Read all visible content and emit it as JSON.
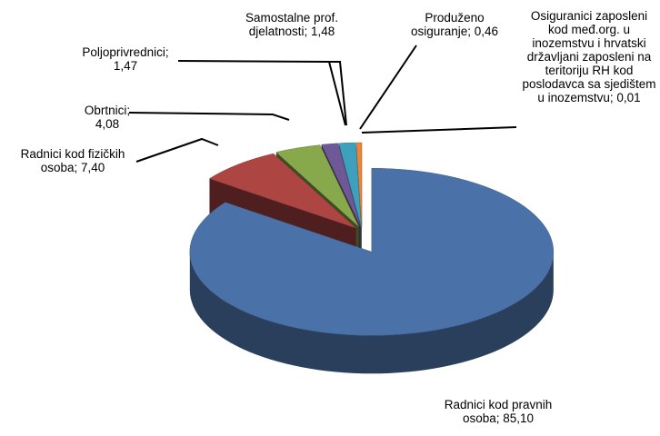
{
  "chart_data": {
    "type": "pie",
    "categories": [
      "Radnici kod pravnih osoba",
      "Radnici kod fizičkih osoba",
      "Obrtnici",
      "Poljoprivrednici",
      "Samostalne prof. djelatnosti",
      "Produženo osiguranje",
      "Osiguranici zaposleni kod međ.org. u inozemstvu i hrvatski državljani zaposleni na teritoriju RH kod poslodavca sa sjedištem u inozemstvu"
    ],
    "values": [
      85.1,
      7.4,
      4.08,
      1.47,
      1.48,
      0.46,
      0.01
    ],
    "value_labels": [
      "85,10",
      "7,40",
      "4,08",
      "1,47",
      "1,48",
      "0,46",
      "0,01"
    ],
    "label_separator": "; ",
    "colors": [
      "#4a72a8",
      "#ad4542",
      "#88a84c",
      "#6e5896",
      "#3ea0bc",
      "#e8863a",
      "#f4a062"
    ]
  }
}
